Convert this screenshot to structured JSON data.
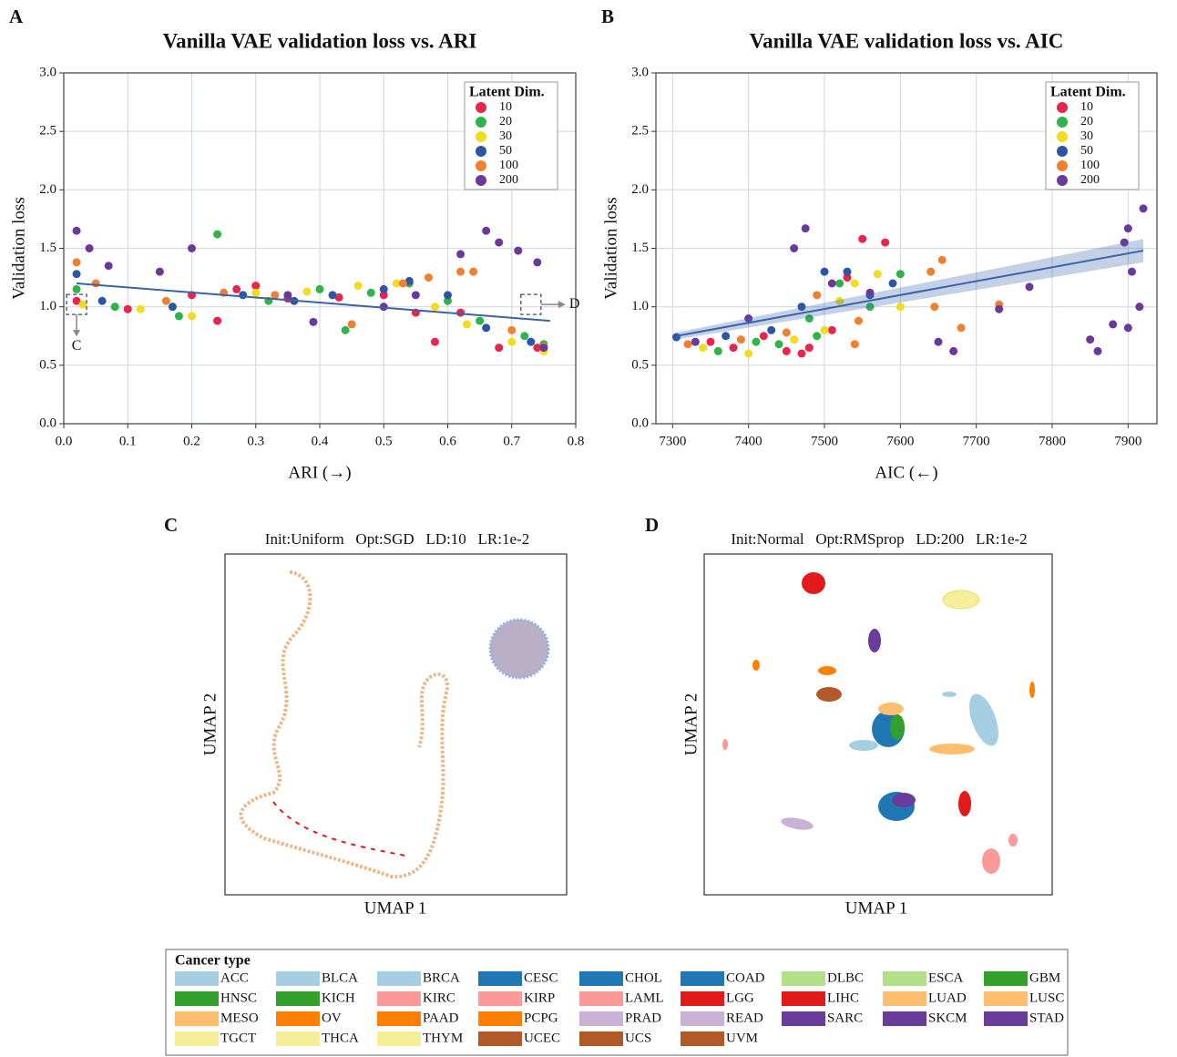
{
  "chart_data": [
    {
      "type": "scatter",
      "panel": "A",
      "title": "Vanilla VAE validation loss vs. ARI",
      "xlabel": "ARI (→)",
      "ylabel": "Validation loss",
      "xlim": [
        0,
        0.8
      ],
      "ylim": [
        0,
        3
      ],
      "xticks": [
        {
          "value": 0,
          "label": "0.0"
        },
        0.1,
        0.2,
        0.3,
        0.4,
        0.5,
        0.6,
        0.7,
        0.8
      ],
      "yticks": [
        {
          "value": 0,
          "label": "0.0"
        },
        0.5,
        {
          "value": 1,
          "label": "1.0"
        },
        1.5,
        {
          "value": 2,
          "label": "2.0"
        },
        2.5,
        {
          "value": 3,
          "label": "3.0"
        }
      ],
      "grid": true,
      "legend": "upper right",
      "legend_title": "Latent Dim.",
      "series": [
        {
          "name": "10",
          "color": "#e8254a",
          "x": [
            0.02,
            0.1,
            0.2,
            0.24,
            0.27,
            0.3,
            0.35,
            0.43,
            0.5,
            0.55,
            0.58,
            0.62,
            0.68,
            0.74
          ],
          "y": [
            1.05,
            0.98,
            1.1,
            0.88,
            1.15,
            1.18,
            1.07,
            1.08,
            1.1,
            0.95,
            0.7,
            0.95,
            0.65,
            0.65
          ]
        },
        {
          "name": "20",
          "color": "#2fb34a",
          "x": [
            0.02,
            0.08,
            0.18,
            0.24,
            0.32,
            0.4,
            0.44,
            0.48,
            0.54,
            0.6,
            0.65,
            0.72,
            0.75
          ],
          "y": [
            1.15,
            1.0,
            0.92,
            1.62,
            1.05,
            1.15,
            0.8,
            1.12,
            1.2,
            1.05,
            0.88,
            0.75,
            0.68
          ]
        },
        {
          "name": "30",
          "color": "#f2dc1f",
          "x": [
            0.03,
            0.12,
            0.2,
            0.3,
            0.38,
            0.46,
            0.52,
            0.58,
            0.63,
            0.7,
            0.75
          ],
          "y": [
            1.02,
            0.98,
            0.92,
            1.12,
            1.13,
            1.18,
            1.2,
            1.0,
            0.85,
            0.7,
            0.62
          ]
        },
        {
          "name": "50",
          "color": "#2e54a6",
          "x": [
            0.02,
            0.06,
            0.17,
            0.28,
            0.36,
            0.42,
            0.5,
            0.54,
            0.6,
            0.66,
            0.73
          ],
          "y": [
            1.28,
            1.05,
            1.0,
            1.1,
            1.05,
            1.1,
            1.15,
            1.22,
            1.1,
            0.82,
            0.7
          ]
        },
        {
          "name": "100",
          "color": "#f08030",
          "x": [
            0.02,
            0.05,
            0.16,
            0.25,
            0.33,
            0.45,
            0.53,
            0.57,
            0.62,
            0.64,
            0.7,
            0.75
          ],
          "y": [
            1.38,
            1.2,
            1.05,
            1.12,
            1.1,
            0.85,
            1.2,
            1.25,
            1.3,
            1.3,
            0.8,
            0.66
          ]
        },
        {
          "name": "200",
          "color": "#6a3a9b",
          "x": [
            0.02,
            0.04,
            0.07,
            0.15,
            0.2,
            0.35,
            0.39,
            0.5,
            0.55,
            0.62,
            0.66,
            0.68,
            0.71,
            0.74,
            0.75
          ],
          "y": [
            1.65,
            1.5,
            1.35,
            1.3,
            1.5,
            1.1,
            0.87,
            1.0,
            1.1,
            1.45,
            1.65,
            1.55,
            1.48,
            1.38,
            0.65
          ]
        }
      ],
      "trendline": {
        "color": "#3a62a8",
        "x": [
          0.02,
          0.76
        ],
        "y": [
          1.2,
          0.88
        ]
      },
      "annotations": [
        {
          "text": "C",
          "x": 0.02,
          "y": 1.02,
          "arrow": "down"
        },
        {
          "text": "D",
          "x": 0.73,
          "y": 1.02,
          "arrow": "right"
        }
      ]
    },
    {
      "type": "scatter",
      "panel": "B",
      "title": "Vanilla VAE validation loss vs. AIC",
      "xlabel": "AIC (←)",
      "ylabel": "Validation loss",
      "xlim": [
        7278,
        7938
      ],
      "ylim": [
        0,
        3
      ],
      "xticks": [
        7300,
        7400,
        7500,
        7600,
        7700,
        7800,
        7900
      ],
      "yticks": [
        {
          "value": 0,
          "label": "0.0"
        },
        0.5,
        {
          "value": 1,
          "label": "1.0"
        },
        1.5,
        {
          "value": 2,
          "label": "2.0"
        },
        2.5,
        {
          "value": 3,
          "label": "3.0"
        }
      ],
      "grid": true,
      "legend": "upper right",
      "legend_title": "Latent Dim.",
      "series": [
        {
          "name": "10",
          "color": "#e8254a",
          "x": [
            7350,
            7380,
            7420,
            7450,
            7480,
            7510,
            7530,
            7550,
            7580,
            7470
          ],
          "y": [
            0.7,
            0.65,
            0.75,
            0.62,
            0.65,
            0.8,
            1.25,
            1.58,
            1.55,
            0.6
          ]
        },
        {
          "name": "20",
          "color": "#2fb34a",
          "x": [
            7360,
            7410,
            7440,
            7490,
            7520,
            7560,
            7600,
            7480
          ],
          "y": [
            0.62,
            0.7,
            0.68,
            0.75,
            1.2,
            1.0,
            1.28,
            0.9
          ]
        },
        {
          "name": "30",
          "color": "#f2dc1f",
          "x": [
            7340,
            7400,
            7460,
            7500,
            7540,
            7570,
            7600,
            7520
          ],
          "y": [
            0.65,
            0.6,
            0.72,
            0.8,
            1.2,
            1.28,
            1.0,
            1.05
          ]
        },
        {
          "name": "50",
          "color": "#2e54a6",
          "x": [
            7305,
            7370,
            7430,
            7470,
            7500,
            7530,
            7560,
            7590
          ],
          "y": [
            0.74,
            0.75,
            0.8,
            1.0,
            1.3,
            1.3,
            1.1,
            1.2
          ]
        },
        {
          "name": "100",
          "color": "#f08030",
          "x": [
            7320,
            7390,
            7450,
            7490,
            7540,
            7640,
            7655,
            7645,
            7680,
            7730,
            7545
          ],
          "y": [
            0.68,
            0.72,
            0.78,
            1.1,
            0.68,
            1.3,
            1.4,
            1.0,
            0.82,
            1.02,
            0.88
          ]
        },
        {
          "name": "200",
          "color": "#6a3a9b",
          "x": [
            7330,
            7400,
            7460,
            7475,
            7510,
            7560,
            7650,
            7670,
            7730,
            7770,
            7850,
            7860,
            7895,
            7900,
            7905,
            7920,
            7915,
            7900,
            7880
          ],
          "y": [
            0.7,
            0.9,
            1.5,
            1.67,
            1.2,
            1.12,
            0.7,
            0.62,
            0.98,
            1.17,
            0.72,
            0.62,
            1.55,
            1.67,
            1.3,
            1.84,
            1.0,
            0.82,
            0.85
          ]
        }
      ],
      "trendline": {
        "color": "#3a62a8",
        "x": [
          7305,
          7920
        ],
        "y": [
          0.75,
          1.48
        ],
        "ci_low": [
          0.72,
          1.38
        ],
        "ci_high": [
          0.78,
          1.58
        ]
      }
    }
  ],
  "umap_panels": [
    {
      "panel": "C",
      "subtitle": "Init:Uniform   Opt:SGD   LD:10   LR:1e-2",
      "xlabel": "UMAP 1",
      "ylabel": "UMAP 2"
    },
    {
      "panel": "D",
      "subtitle": "Init:Normal   Opt:RMSprop   LD:200   LR:1e-2",
      "xlabel": "UMAP 1",
      "ylabel": "UMAP 2"
    }
  ],
  "cancer_legend": {
    "title": "Cancer type",
    "items": [
      {
        "name": "ACC",
        "color": "#a6cee3"
      },
      {
        "name": "BLCA",
        "color": "#a6cee3"
      },
      {
        "name": "BRCA",
        "color": "#a6cee3"
      },
      {
        "name": "CESC",
        "color": "#1f78b4"
      },
      {
        "name": "CHOL",
        "color": "#1f78b4"
      },
      {
        "name": "COAD",
        "color": "#1f78b4"
      },
      {
        "name": "DLBC",
        "color": "#b2df8a"
      },
      {
        "name": "ESCA",
        "color": "#b2df8a"
      },
      {
        "name": "GBM",
        "color": "#33a02c"
      },
      {
        "name": "HNSC",
        "color": "#33a02c"
      },
      {
        "name": "KICH",
        "color": "#33a02c"
      },
      {
        "name": "KIRC",
        "color": "#fb9a99"
      },
      {
        "name": "KIRP",
        "color": "#fb9a99"
      },
      {
        "name": "LAML",
        "color": "#fb9a99"
      },
      {
        "name": "LGG",
        "color": "#e31a1c"
      },
      {
        "name": "LIHC",
        "color": "#e31a1c"
      },
      {
        "name": "LUAD",
        "color": "#fdbf6f"
      },
      {
        "name": "LUSC",
        "color": "#fdbf6f"
      },
      {
        "name": "MESO",
        "color": "#fdbf6f"
      },
      {
        "name": "OV",
        "color": "#ff7f00"
      },
      {
        "name": "PAAD",
        "color": "#ff7f00"
      },
      {
        "name": "PCPG",
        "color": "#ff7f00"
      },
      {
        "name": "PRAD",
        "color": "#cab2d6"
      },
      {
        "name": "READ",
        "color": "#cab2d6"
      },
      {
        "name": "SARC",
        "color": "#6a3d9a"
      },
      {
        "name": "SKCM",
        "color": "#6a3d9a"
      },
      {
        "name": "STAD",
        "color": "#6a3d9a"
      },
      {
        "name": "TGCT",
        "color": "#f5ef9a"
      },
      {
        "name": "THCA",
        "color": "#f5ef9a"
      },
      {
        "name": "THYM",
        "color": "#f5ef9a"
      },
      {
        "name": "UCEC",
        "color": "#b15928"
      },
      {
        "name": "UCS",
        "color": "#b15928"
      },
      {
        "name": "UVM",
        "color": "#b15928"
      }
    ]
  }
}
